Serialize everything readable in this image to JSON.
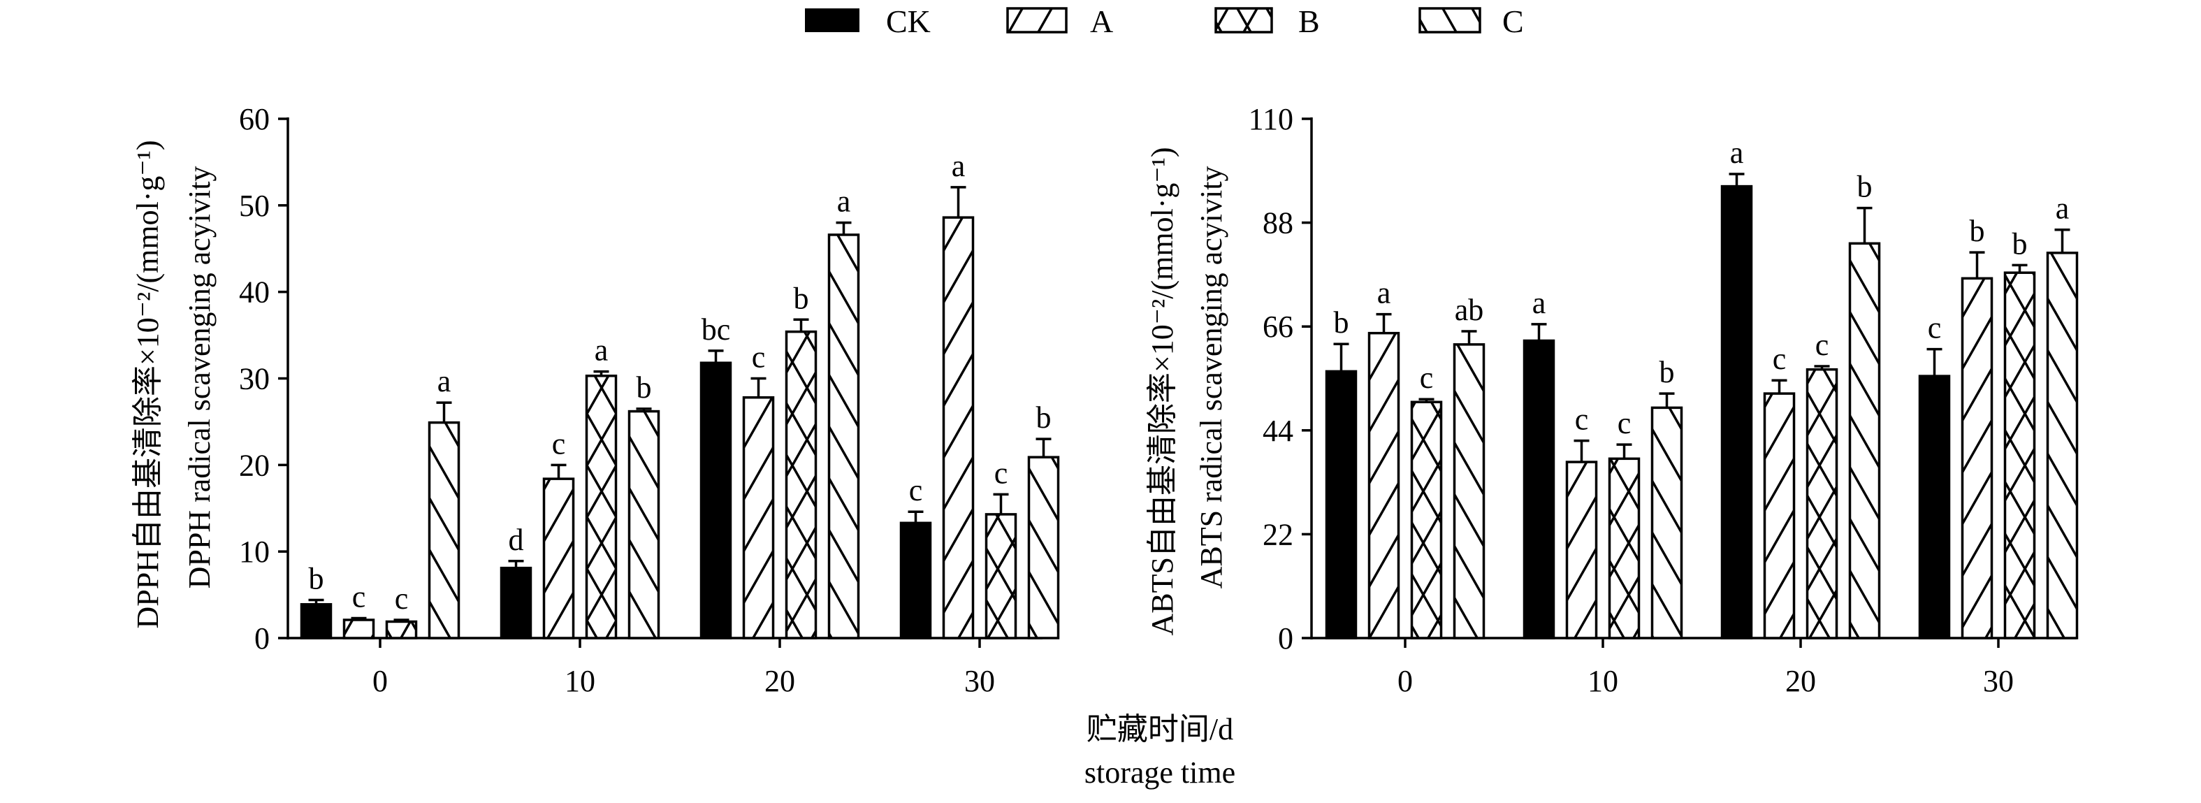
{
  "legend": [
    {
      "key": "CK",
      "label": "CK",
      "pattern": "solid"
    },
    {
      "key": "A",
      "label": "A",
      "pattern": "forward-diagonal"
    },
    {
      "key": "B",
      "label": "B",
      "pattern": "crosshatch"
    },
    {
      "key": "C",
      "label": "C",
      "pattern": "back-diagonal"
    }
  ],
  "xlabel": {
    "line1": "贮藏时间/d",
    "line2": "storage time"
  },
  "chart_data": [
    {
      "type": "bar",
      "title": "",
      "ylabel_cn": "DPPH自由基清除率×10⁻²/(mmol·g⁻¹)",
      "ylabel_en": "DPPH radical scavenging acyivity",
      "xlabel": "贮藏时间/d storage time",
      "categories": [
        "0",
        "10",
        "20",
        "30"
      ],
      "ylim": [
        0,
        60
      ],
      "yticks": [
        "0",
        "10",
        "20",
        "30",
        "40",
        "50",
        "60"
      ],
      "series": [
        {
          "name": "CK",
          "values": [
            3.9,
            8.1,
            31.8,
            13.3
          ],
          "errors": [
            0.5,
            0.8,
            1.4,
            1.3
          ],
          "letters": [
            "b",
            "d",
            "bc",
            "c"
          ]
        },
        {
          "name": "A",
          "values": [
            2.1,
            18.4,
            27.8,
            48.6
          ],
          "errors": [
            0.2,
            1.6,
            2.2,
            3.5
          ],
          "letters": [
            "c",
            "c",
            "c",
            "a"
          ]
        },
        {
          "name": "B",
          "values": [
            1.9,
            30.3,
            35.4,
            14.3
          ],
          "errors": [
            0.2,
            0.5,
            1.4,
            2.3
          ],
          "letters": [
            "c",
            "a",
            "b",
            "c"
          ]
        },
        {
          "name": "C",
          "values": [
            24.9,
            26.2,
            46.6,
            20.9
          ],
          "errors": [
            2.3,
            0.3,
            1.4,
            2.1
          ],
          "letters": [
            "a",
            "b",
            "a",
            "b"
          ]
        }
      ]
    },
    {
      "type": "bar",
      "title": "",
      "ylabel_cn": "ABTS自由基清除率×10⁻²/(mmol·g⁻¹)",
      "ylabel_en": "ABTS radical scavenging acyivity",
      "xlabel": "贮藏时间/d storage time",
      "categories": [
        "0",
        "10",
        "20",
        "30"
      ],
      "ylim": [
        0,
        110
      ],
      "yticks": [
        "0",
        "22",
        "44",
        "66",
        "88",
        "110"
      ],
      "series": [
        {
          "name": "CK",
          "values": [
            56.5,
            63.0,
            95.7,
            55.5
          ],
          "errors": [
            5.8,
            3.5,
            2.6,
            5.7
          ],
          "letters": [
            "b",
            "a",
            "a",
            "c"
          ]
        },
        {
          "name": "A",
          "values": [
            64.6,
            37.3,
            51.8,
            76.2
          ],
          "errors": [
            4.0,
            4.5,
            2.8,
            5.5
          ],
          "letters": [
            "a",
            "c",
            "c",
            "b"
          ]
        },
        {
          "name": "B",
          "values": [
            50.0,
            38.0,
            56.9,
            77.4
          ],
          "errors": [
            0.6,
            3.0,
            0.7,
            1.6
          ],
          "letters": [
            "c",
            "c",
            "c",
            "b"
          ]
        },
        {
          "name": "C",
          "values": [
            62.2,
            48.8,
            83.6,
            81.6
          ],
          "errors": [
            2.8,
            3.0,
            7.5,
            4.9
          ],
          "letters": [
            "ab",
            "b",
            "b",
            "a"
          ]
        }
      ]
    }
  ]
}
